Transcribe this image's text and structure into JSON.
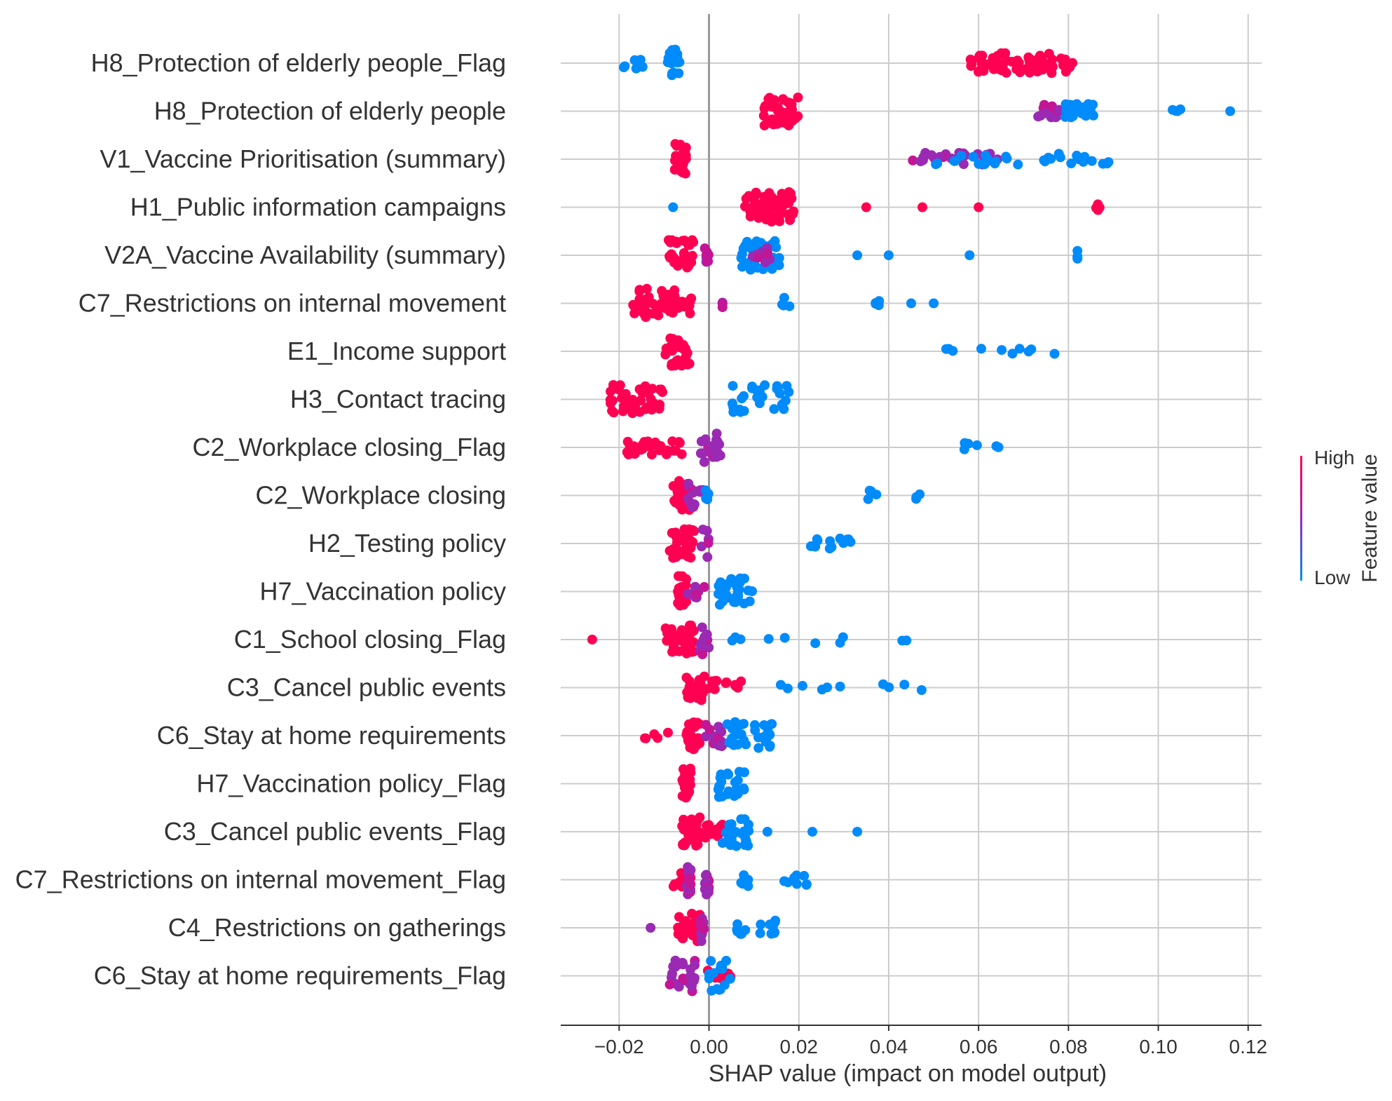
{
  "chart_data": {
    "type": "scatter",
    "subtype": "shap-beeswarm",
    "title": "",
    "xlabel": "SHAP value (impact on model output)",
    "ylabel": "",
    "xlim": [
      -0.033,
      0.123
    ],
    "x_ticks": [
      -0.02,
      0.0,
      0.02,
      0.04,
      0.06,
      0.08,
      0.1,
      0.12
    ],
    "x_tick_labels": [
      "−0.02",
      "0.00",
      "0.02",
      "0.04",
      "0.06",
      "0.08",
      "0.10",
      "0.12"
    ],
    "grid": true,
    "legend": {
      "type": "colorbar",
      "placement": "right",
      "title": "Feature value",
      "high_label": "High",
      "low_label": "Low",
      "high_color": "#ff0052",
      "mid_color": "#9a2ab3",
      "low_color": "#008bfb"
    },
    "features": [
      {
        "name": "H8_Protection of elderly people_Flag",
        "clusters": [
          {
            "range": [
              -0.02,
              -0.014
            ],
            "color": "low",
            "n": 10,
            "spread": 0.3
          },
          {
            "range": [
              -0.0095,
              -0.0065
            ],
            "color": "low",
            "n": 26,
            "spread": 0.75
          },
          {
            "range": [
              0.058,
              0.081
            ],
            "color": "high",
            "n": 70,
            "spread": 0.55
          }
        ]
      },
      {
        "name": "H8_Protection of elderly people",
        "clusters": [
          {
            "range": [
              0.012,
              0.02
            ],
            "color": "high",
            "n": 45,
            "spread": 0.8
          },
          {
            "range": [
              0.073,
              0.078
            ],
            "color": "mid",
            "n": 15,
            "spread": 0.35
          },
          {
            "range": [
              0.079,
              0.086
            ],
            "color": "low",
            "n": 30,
            "spread": 0.4
          },
          {
            "range": [
              0.103,
              0.105
            ],
            "color": "low",
            "n": 4,
            "spread": 0.25
          },
          {
            "range": [
              0.116,
              0.116
            ],
            "color": "low",
            "n": 1,
            "spread": 0.0
          }
        ]
      },
      {
        "name": "V1_Vaccine Prioritisation (summary)",
        "clusters": [
          {
            "range": [
              -0.008,
              -0.005
            ],
            "color": "high",
            "n": 28,
            "spread": 0.85
          },
          {
            "range": [
              0.045,
              0.065
            ],
            "color": "mid",
            "n": 25,
            "spread": 0.35
          },
          {
            "range": [
              0.05,
              0.089
            ],
            "color": "low",
            "n": 30,
            "spread": 0.3
          }
        ]
      },
      {
        "name": "H1_Public information campaigns",
        "clusters": [
          {
            "range": [
              -0.008,
              -0.008
            ],
            "color": "low",
            "n": 1,
            "spread": 0.0
          },
          {
            "range": [
              0.008,
              0.019
            ],
            "color": "high",
            "n": 60,
            "spread": 0.85
          },
          {
            "range": [
              0.035,
              0.06
            ],
            "color": "high",
            "n": 3,
            "spread": 0.0
          },
          {
            "range": [
              0.086,
              0.087
            ],
            "color": "high",
            "n": 4,
            "spread": 0.2
          }
        ]
      },
      {
        "name": "V2A_Vaccine Availability (summary)",
        "clusters": [
          {
            "range": [
              -0.009,
              -0.003
            ],
            "color": "high",
            "n": 30,
            "spread": 0.85
          },
          {
            "range": [
              -0.001,
              0.0
            ],
            "color": "mid",
            "n": 8,
            "spread": 0.4
          },
          {
            "range": [
              0.007,
              0.016
            ],
            "color": "low",
            "n": 40,
            "spread": 0.8
          },
          {
            "range": [
              0.009,
              0.014
            ],
            "color": "mid",
            "n": 10,
            "spread": 0.45
          },
          {
            "range": [
              0.033,
              0.04
            ],
            "color": "low",
            "n": 2,
            "spread": 0.0
          },
          {
            "range": [
              0.058,
              0.058
            ],
            "color": "low",
            "n": 1,
            "spread": 0.0
          },
          {
            "range": [
              0.082,
              0.082
            ],
            "color": "low",
            "n": 4,
            "spread": 0.3
          }
        ]
      },
      {
        "name": "C7_Restrictions on internal movement",
        "clusters": [
          {
            "range": [
              -0.017,
              -0.003
            ],
            "color": "high",
            "n": 50,
            "spread": 0.8
          },
          {
            "range": [
              0.003,
              0.003
            ],
            "color": "mid",
            "n": 3,
            "spread": 0.3
          },
          {
            "range": [
              0.016,
              0.018
            ],
            "color": "low",
            "n": 4,
            "spread": 0.35
          },
          {
            "range": [
              0.037,
              0.038
            ],
            "color": "low",
            "n": 4,
            "spread": 0.3
          },
          {
            "range": [
              0.045,
              0.05
            ],
            "color": "low",
            "n": 2,
            "spread": 0.0
          }
        ]
      },
      {
        "name": "E1_Income support",
        "clusters": [
          {
            "range": [
              -0.01,
              -0.004
            ],
            "color": "high",
            "n": 35,
            "spread": 0.85
          },
          {
            "range": [
              0.051,
              0.078
            ],
            "color": "low",
            "n": 10,
            "spread": 0.15
          }
        ]
      },
      {
        "name": "H3_Contact tracing",
        "clusters": [
          {
            "range": [
              -0.022,
              -0.01
            ],
            "color": "high",
            "n": 40,
            "spread": 0.85
          },
          {
            "range": [
              0.005,
              0.018
            ],
            "color": "low",
            "n": 30,
            "spread": 0.8
          }
        ]
      },
      {
        "name": "C2_Workplace closing_Flag",
        "clusters": [
          {
            "range": [
              -0.019,
              -0.006
            ],
            "color": "high",
            "n": 30,
            "spread": 0.4
          },
          {
            "range": [
              -0.002,
              0.003
            ],
            "color": "mid",
            "n": 20,
            "spread": 0.8
          },
          {
            "range": [
              0.053,
              0.068
            ],
            "color": "low",
            "n": 6,
            "spread": 0.25
          }
        ]
      },
      {
        "name": "C2_Workplace closing",
        "clusters": [
          {
            "range": [
              -0.008,
              -0.004
            ],
            "color": "high",
            "n": 25,
            "spread": 0.8
          },
          {
            "range": [
              -0.005,
              -0.001
            ],
            "color": "mid",
            "n": 15,
            "spread": 0.65
          },
          {
            "range": [
              -0.001,
              0.001
            ],
            "color": "low",
            "n": 5,
            "spread": 0.35
          },
          {
            "range": [
              0.035,
              0.038
            ],
            "color": "low",
            "n": 4,
            "spread": 0.3
          },
          {
            "range": [
              0.046,
              0.047
            ],
            "color": "low",
            "n": 3,
            "spread": 0.25
          }
        ]
      },
      {
        "name": "H2_Testing policy",
        "clusters": [
          {
            "range": [
              -0.009,
              -0.003
            ],
            "color": "high",
            "n": 30,
            "spread": 0.8
          },
          {
            "range": [
              -0.002,
              0.0
            ],
            "color": "mid",
            "n": 6,
            "spread": 0.8
          },
          {
            "range": [
              0.022,
              0.033
            ],
            "color": "low",
            "n": 12,
            "spread": 0.3
          }
        ]
      },
      {
        "name": "H7_Vaccination policy",
        "clusters": [
          {
            "range": [
              -0.007,
              -0.005
            ],
            "color": "high",
            "n": 20,
            "spread": 0.85
          },
          {
            "range": [
              -0.005,
              0.002
            ],
            "color": "mid",
            "n": 10,
            "spread": 0.35
          },
          {
            "range": [
              0.002,
              0.01
            ],
            "color": "low",
            "n": 30,
            "spread": 0.75
          }
        ]
      },
      {
        "name": "C1_School closing_Flag",
        "clusters": [
          {
            "range": [
              -0.026,
              -0.026
            ],
            "color": "high",
            "n": 1,
            "spread": 0.0
          },
          {
            "range": [
              -0.01,
              -0.003
            ],
            "color": "high",
            "n": 40,
            "spread": 0.8
          },
          {
            "range": [
              -0.002,
              0.0
            ],
            "color": "mid",
            "n": 15,
            "spread": 0.85
          },
          {
            "range": [
              0.004,
              0.048
            ],
            "color": "low",
            "n": 10,
            "spread": 0.2
          }
        ]
      },
      {
        "name": "C3_Cancel public events",
        "clusters": [
          {
            "range": [
              -0.005,
              -0.001
            ],
            "color": "high",
            "n": 30,
            "spread": 0.75
          },
          {
            "range": [
              -0.001,
              0.008
            ],
            "color": "high",
            "n": 12,
            "spread": 0.45
          },
          {
            "range": [
              0.012,
              0.048
            ],
            "color": "low",
            "n": 10,
            "spread": 0.2
          }
        ]
      },
      {
        "name": "C6_Stay at home requirements",
        "clusters": [
          {
            "range": [
              -0.015,
              -0.007
            ],
            "color": "high",
            "n": 5,
            "spread": 0.2
          },
          {
            "range": [
              -0.005,
              -0.002
            ],
            "color": "high",
            "n": 25,
            "spread": 0.75
          },
          {
            "range": [
              -0.001,
              0.004
            ],
            "color": "mid",
            "n": 15,
            "spread": 0.6
          },
          {
            "range": [
              0.004,
              0.014
            ],
            "color": "low",
            "n": 30,
            "spread": 0.75
          }
        ]
      },
      {
        "name": "H7_Vaccination policy_Flag",
        "clusters": [
          {
            "range": [
              -0.006,
              -0.004
            ],
            "color": "high",
            "n": 25,
            "spread": 0.85
          },
          {
            "range": [
              0.002,
              0.008
            ],
            "color": "low",
            "n": 28,
            "spread": 0.75
          }
        ]
      },
      {
        "name": "C3_Cancel public events_Flag",
        "clusters": [
          {
            "range": [
              -0.006,
              -0.002
            ],
            "color": "high",
            "n": 30,
            "spread": 0.8
          },
          {
            "range": [
              -0.002,
              0.003
            ],
            "color": "high",
            "n": 15,
            "spread": 0.5
          },
          {
            "range": [
              0.003,
              0.009
            ],
            "color": "low",
            "n": 25,
            "spread": 0.8
          },
          {
            "range": [
              0.013,
              0.033
            ],
            "color": "low",
            "n": 3,
            "spread": 0.0
          }
        ]
      },
      {
        "name": "C7_Restrictions on internal movement_Flag",
        "clusters": [
          {
            "range": [
              -0.008,
              -0.004
            ],
            "color": "high",
            "n": 15,
            "spread": 0.5
          },
          {
            "range": [
              -0.005,
              -0.004
            ],
            "color": "mid",
            "n": 15,
            "spread": 0.85
          },
          {
            "range": [
              -0.001,
              0.0
            ],
            "color": "mid",
            "n": 15,
            "spread": 0.85
          },
          {
            "range": [
              0.007,
              0.009
            ],
            "color": "low",
            "n": 5,
            "spread": 0.4
          },
          {
            "range": [
              0.016,
              0.022
            ],
            "color": "low",
            "n": 8,
            "spread": 0.3
          }
        ]
      },
      {
        "name": "C4_Restrictions on gatherings",
        "clusters": [
          {
            "range": [
              -0.013,
              -0.013
            ],
            "color": "mid",
            "n": 1,
            "spread": 0.0
          },
          {
            "range": [
              -0.007,
              -0.002
            ],
            "color": "high",
            "n": 30,
            "spread": 0.8
          },
          {
            "range": [
              -0.002,
              -0.001
            ],
            "color": "mid",
            "n": 10,
            "spread": 0.8
          },
          {
            "range": [
              0.006,
              0.015
            ],
            "color": "low",
            "n": 15,
            "spread": 0.4
          }
        ]
      },
      {
        "name": "C6_Stay at home requirements_Flag",
        "clusters": [
          {
            "range": [
              -0.009,
              -0.003
            ],
            "color": "mid",
            "n": 25,
            "spread": 0.85
          },
          {
            "range": [
              -0.002,
              0.005
            ],
            "color": "high",
            "n": 12,
            "spread": 0.4
          },
          {
            "range": [
              0.0,
              0.006
            ],
            "color": "low",
            "n": 15,
            "spread": 0.85
          }
        ]
      }
    ]
  }
}
